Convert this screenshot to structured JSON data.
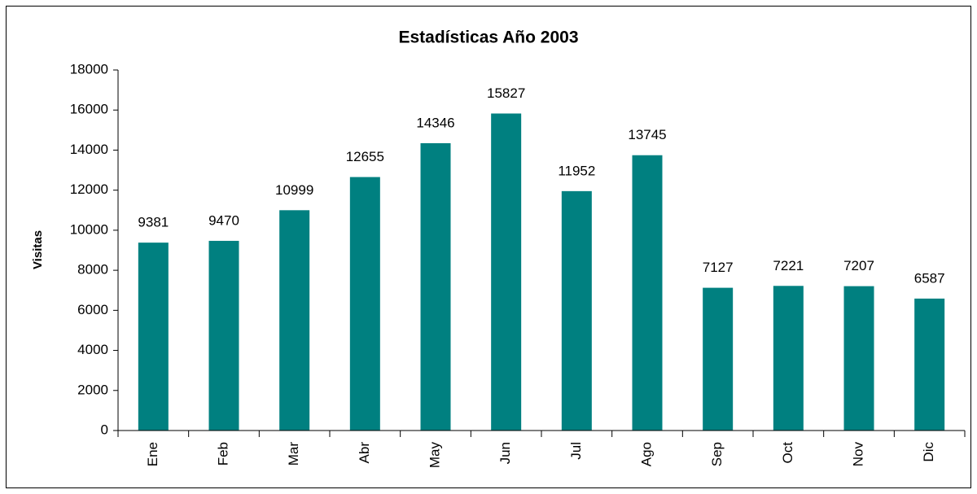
{
  "chart_data": {
    "type": "bar",
    "title": "Estadísticas Año 2003",
    "y_label": "Visitas",
    "categories": [
      "Ene",
      "Feb",
      "Mar",
      "Abr",
      "May",
      "Jun",
      "Jul",
      "Ago",
      "Sep",
      "Oct",
      "Nov",
      "Dic"
    ],
    "values": [
      9381,
      9470,
      10999,
      12655,
      14346,
      15827,
      11952,
      13745,
      7127,
      7221,
      7207,
      6587
    ],
    "color": "#008080",
    "ylim": [
      0,
      18000
    ],
    "yticks": [
      0,
      2000,
      4000,
      6000,
      8000,
      10000,
      12000,
      14000,
      16000,
      18000
    ],
    "grid": false
  }
}
